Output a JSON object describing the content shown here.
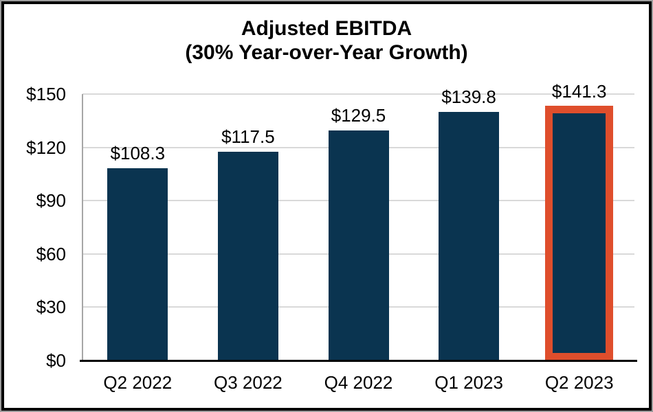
{
  "title": {
    "line1": "Adjusted EBITDA",
    "line2": "(30% Year-over-Year Growth)"
  },
  "colors": {
    "bar": "#0a3450",
    "highlight_outline": "#df4e2c",
    "gridline": "#d9d9d9",
    "y_axis_line": "#a6a6a6",
    "x_axis_line": "#000000",
    "text": "#000000",
    "frame_border": "#000000"
  },
  "chart_data": {
    "type": "bar",
    "title": "Adjusted EBITDA",
    "subtitle": "(30% Year-over-Year Growth)",
    "categories": [
      "Q2 2022",
      "Q3 2022",
      "Q4 2022",
      "Q1 2023",
      "Q2 2023"
    ],
    "values": [
      108.3,
      117.5,
      129.5,
      139.8,
      141.3
    ],
    "bar_labels": [
      "$108.3",
      "$117.5",
      "$129.5",
      "$139.8",
      "$141.3"
    ],
    "y_tick_values": [
      0,
      30,
      60,
      90,
      120,
      150
    ],
    "y_tick_labels": [
      "$0",
      "$30",
      "$60",
      "$90",
      "$120",
      "$150"
    ],
    "ylim": [
      0,
      150
    ],
    "xlabel": "",
    "ylabel": "",
    "grid": "horizontal",
    "legend": "none",
    "highlighted_index": 4
  }
}
